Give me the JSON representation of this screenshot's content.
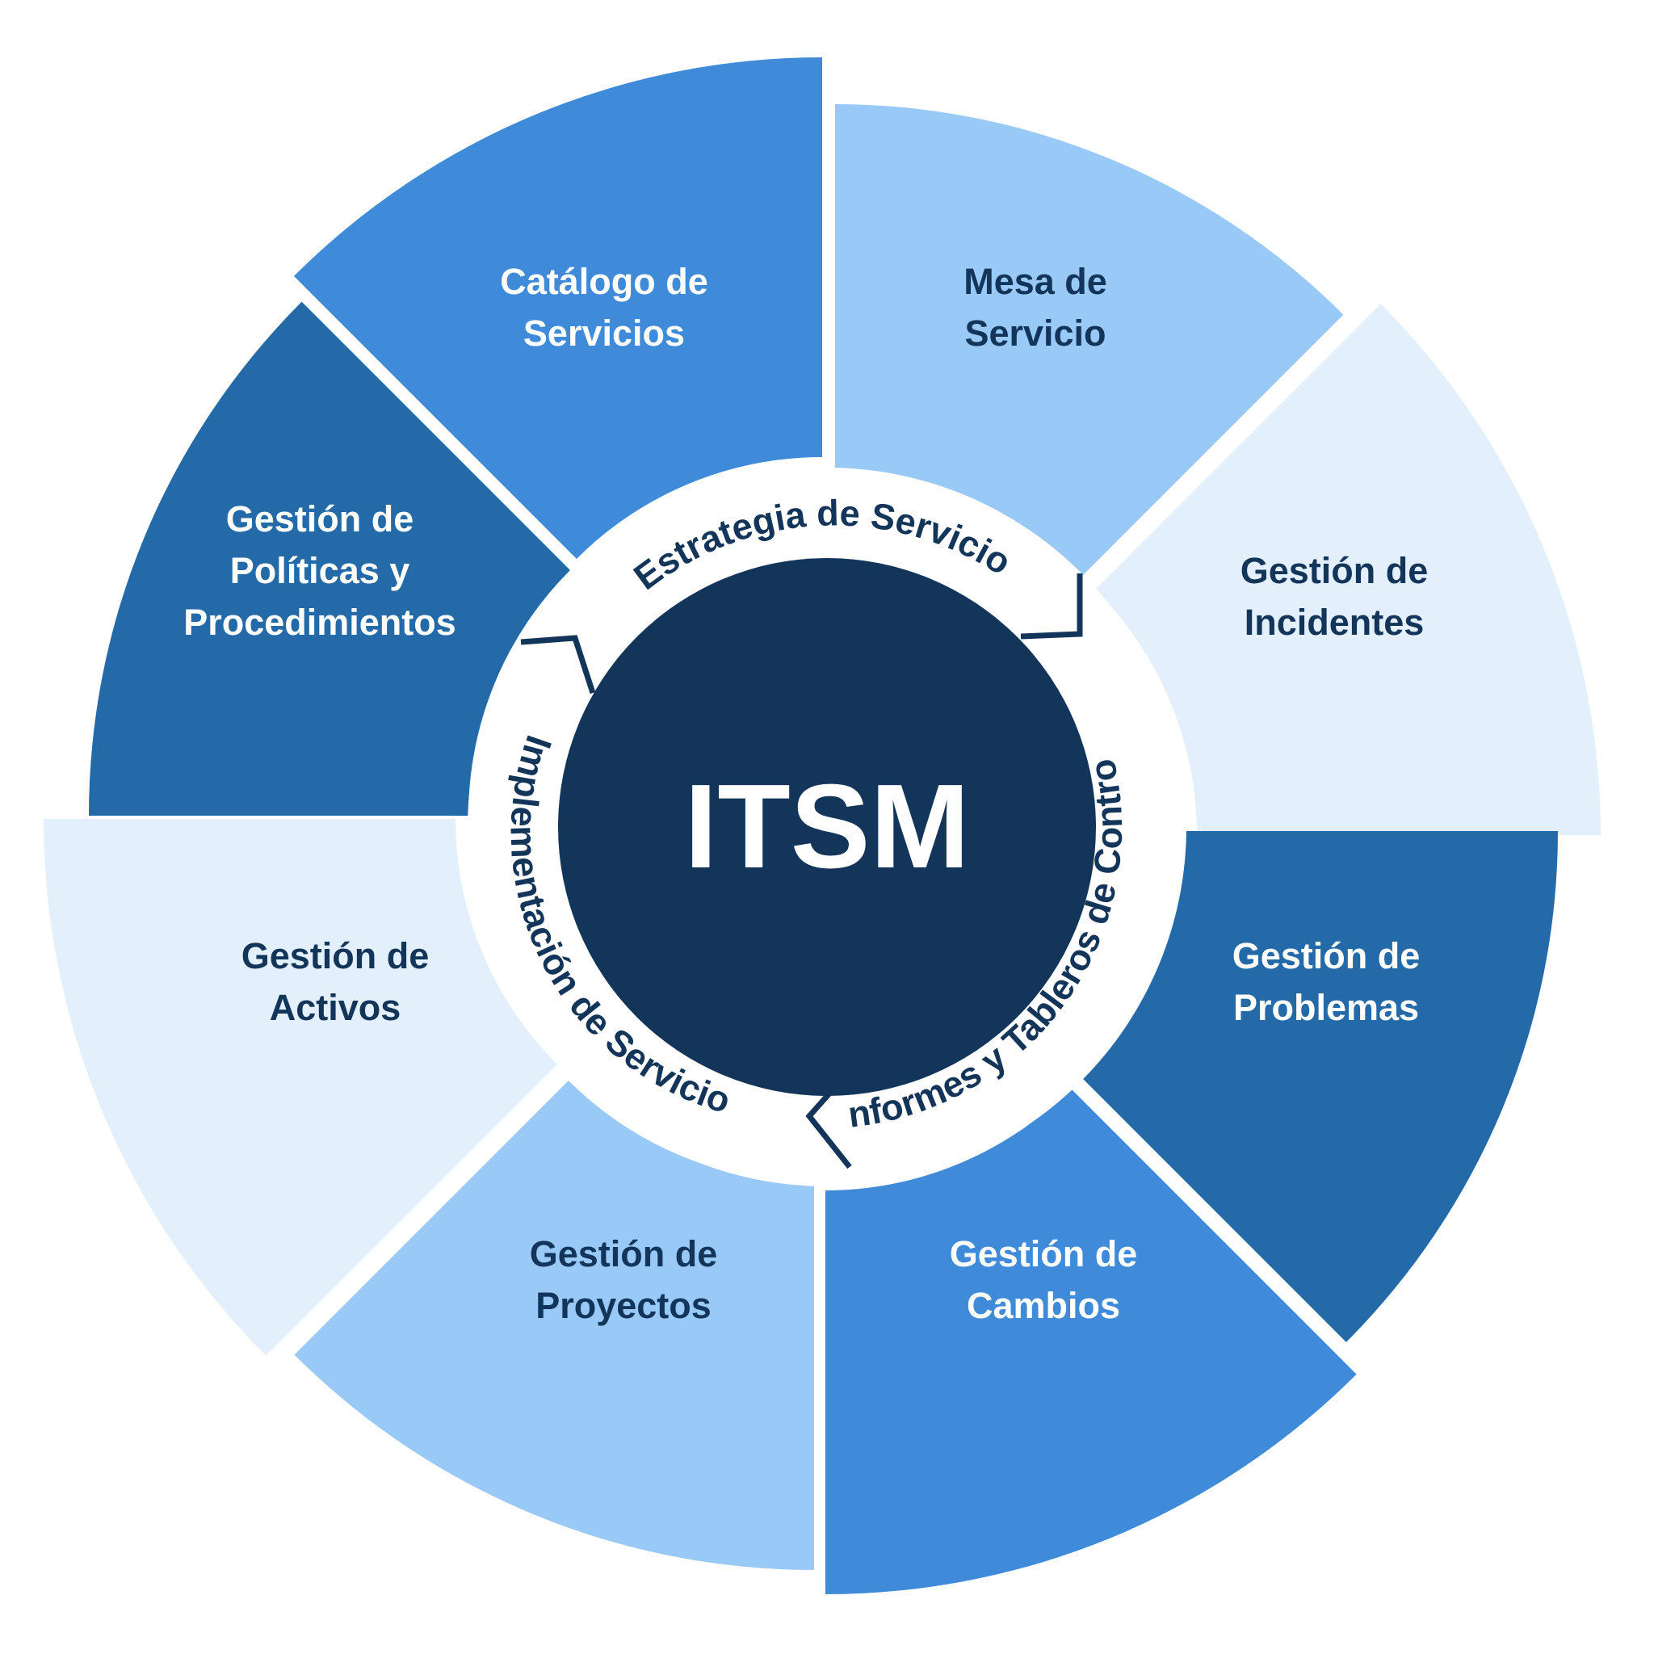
{
  "center": {
    "title": "ITSM"
  },
  "ring": {
    "strategy": "Estrategia de Servicio",
    "reports": "Informes y Tableros de Control",
    "implementation": "Implementación de Servicio"
  },
  "segments": [
    {
      "id": "catalogo",
      "lines": [
        "Catálogo de",
        "Servicios"
      ],
      "fill": "#3f8bd9",
      "text_color": "#ffffff"
    },
    {
      "id": "mesa",
      "lines": [
        "Mesa de",
        "Servicio"
      ],
      "fill": "#99c9f7",
      "text_color": "#13355a"
    },
    {
      "id": "incidentes",
      "lines": [
        "Gestión de",
        "Incidentes"
      ],
      "fill": "#e3f0fc",
      "text_color": "#13355a"
    },
    {
      "id": "problemas",
      "lines": [
        "Gestión de",
        "Problemas"
      ],
      "fill": "#256aa8",
      "text_color": "#ffffff"
    },
    {
      "id": "cambios",
      "lines": [
        "Gestión de",
        "Cambios"
      ],
      "fill": "#3f8bd9",
      "text_color": "#ffffff"
    },
    {
      "id": "proyectos",
      "lines": [
        "Gestión de",
        "Proyectos"
      ],
      "fill": "#99c9f7",
      "text_color": "#13355a"
    },
    {
      "id": "activos",
      "lines": [
        "Gestión de",
        "Activos"
      ],
      "fill": "#e3f0fc",
      "text_color": "#13355a"
    },
    {
      "id": "politicas",
      "lines": [
        "Gestión de",
        "Políticas y",
        "Procedimientos"
      ],
      "fill": "#256aa8",
      "text_color": "#ffffff"
    }
  ],
  "colors": {
    "center_circle": "#13355a",
    "ring_background": "#ffffff",
    "ring_text": "#13355a"
  }
}
